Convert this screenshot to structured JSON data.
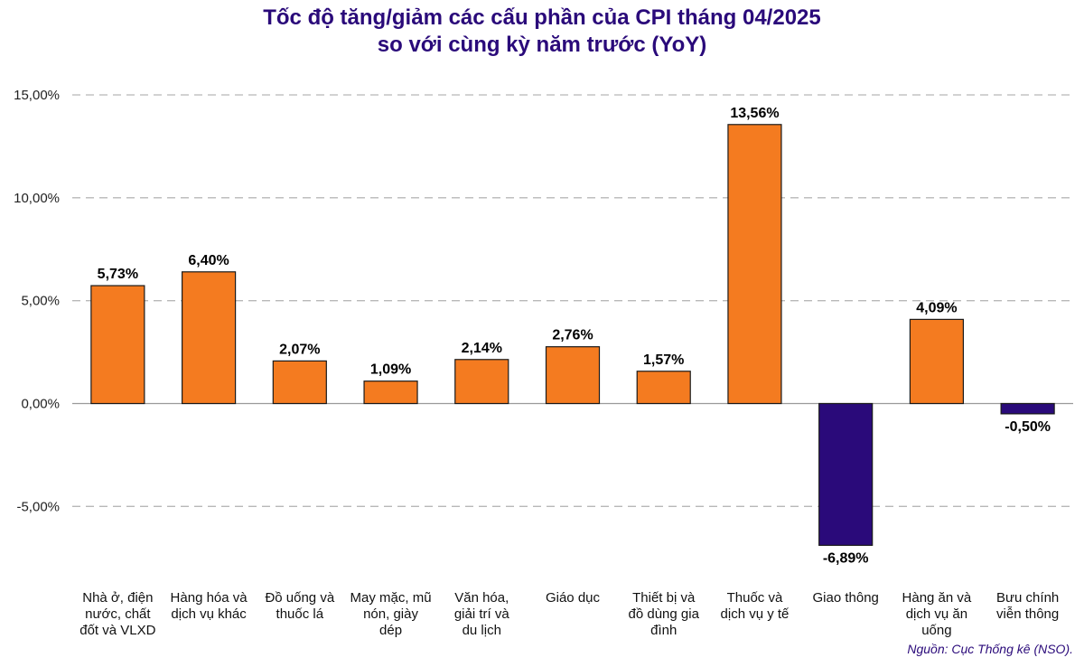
{
  "chart_data": {
    "type": "bar",
    "title_lines": [
      "Tốc độ tăng/giảm các cấu phần của CPI tháng 04/2025",
      "so với cùng kỳ năm trước (YoY)"
    ],
    "categories": [
      [
        "Nhà ở, điện",
        "nước, chất",
        "đốt và VLXD"
      ],
      [
        "Hàng hóa và",
        "dịch vụ khác"
      ],
      [
        "Đồ uống và",
        "thuốc lá"
      ],
      [
        "May mặc, mũ",
        "nón, giày",
        "dép"
      ],
      [
        "Văn hóa,",
        "giải trí và",
        "du lịch"
      ],
      [
        "Giáo dục"
      ],
      [
        "Thiết bị và",
        "đồ dùng gia",
        "đình"
      ],
      [
        "Thuốc và",
        "dịch vụ y tế"
      ],
      [
        "Giao thông"
      ],
      [
        "Hàng ăn và",
        "dịch vụ ăn",
        "uống"
      ],
      [
        "Bưu chính",
        "viễn thông"
      ]
    ],
    "values": [
      5.73,
      6.4,
      2.07,
      1.09,
      2.14,
      2.76,
      1.57,
      13.56,
      -6.89,
      4.09,
      -0.5
    ],
    "value_labels": [
      "5,73%",
      "6,40%",
      "2,07%",
      "1,09%",
      "2,14%",
      "2,76%",
      "1,57%",
      "13,56%",
      "-6,89%",
      "4,09%",
      "-0,50%"
    ],
    "ylim": [
      -8,
      15.5
    ],
    "yticks": [
      15,
      10,
      5,
      0,
      -5
    ],
    "ytick_labels": [
      "15,00%",
      "10,00%",
      "5,00%",
      "0,00%",
      "-5,00%"
    ],
    "grid": "horizontal-dashed",
    "colors": {
      "positive": "#F47B20",
      "negative": "#2A0A7A",
      "title": "#2A0A7A",
      "source": "#2A0A7A",
      "grid": "#b8b8b8"
    },
    "source": "Nguồn: Cục Thống kê (NSO)."
  }
}
